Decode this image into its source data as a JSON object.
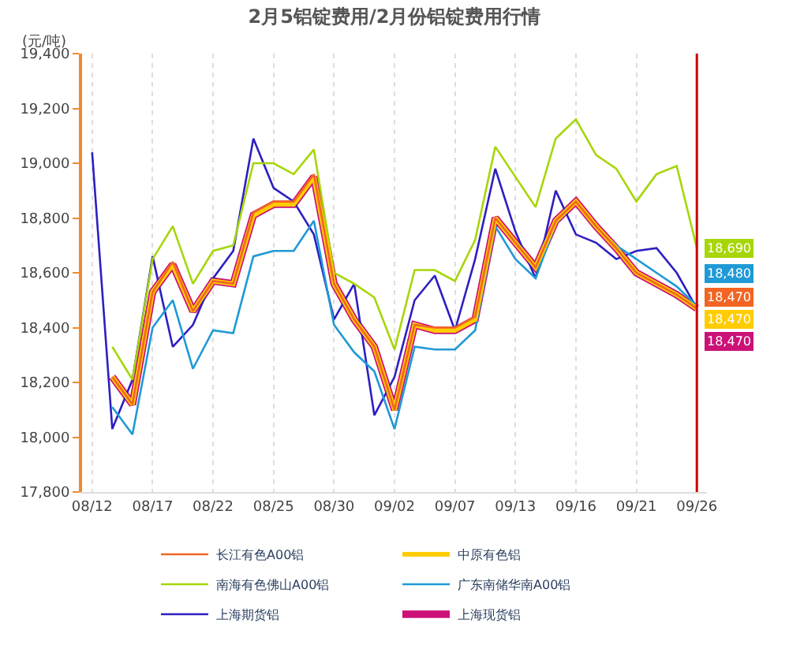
{
  "chart_data": {
    "type": "line",
    "title": "2月5铝锭费用/2月份铝锭费用行情",
    "ylabel": "(元/吨)",
    "categories": [
      "08/12",
      null,
      null,
      "08/17",
      null,
      null,
      "08/22",
      null,
      null,
      "08/25",
      null,
      null,
      "08/30",
      null,
      null,
      "09/02",
      null,
      null,
      "09/07",
      null,
      null,
      "09/13",
      null,
      null,
      "09/16",
      null,
      null,
      "09/21",
      null,
      null,
      "09/26"
    ],
    "series": [
      {
        "name": "长江有色A00铝",
        "color": "#f26522",
        "values": [
          null,
          18220,
          18120,
          18530,
          18640,
          18460,
          18570,
          18560,
          18820,
          18860,
          18860,
          18960,
          18560,
          18430,
          18330,
          18100,
          18410,
          18400,
          18400,
          18440,
          18800,
          18710,
          18620,
          18790,
          18860,
          18770,
          18690,
          18600,
          18560,
          18520,
          18470
        ],
        "value_labels": [
          null,
          null,
          null,
          null,
          null,
          null,
          null,
          null,
          null,
          null,
          null,
          null,
          null,
          null,
          null,
          null,
          null,
          null,
          null,
          null,
          null,
          null,
          null,
          null,
          null,
          null,
          null,
          null,
          null,
          null,
          "18,470"
        ]
      },
      {
        "name": "中原有色铝",
        "color": "#ffcc00",
        "values": [
          null,
          18220,
          18120,
          18530,
          18630,
          18460,
          18570,
          18560,
          18810,
          18850,
          18850,
          18950,
          18560,
          18430,
          18330,
          18100,
          18410,
          18390,
          18390,
          18430,
          18800,
          18710,
          18620,
          18790,
          18860,
          18770,
          18690,
          18600,
          18560,
          18520,
          18470
        ],
        "value_labels": [
          null,
          null,
          null,
          null,
          null,
          null,
          null,
          null,
          null,
          null,
          null,
          null,
          null,
          null,
          null,
          null,
          null,
          null,
          null,
          null,
          null,
          null,
          null,
          null,
          null,
          null,
          null,
          null,
          null,
          null,
          "18,470"
        ]
      },
      {
        "name": "南海有色佛山A00铝",
        "color": "#a6d608",
        "values": [
          null,
          18330,
          18210,
          18650,
          18770,
          18560,
          18680,
          18700,
          19000,
          19000,
          18960,
          19050,
          18600,
          18560,
          18510,
          18320,
          18610,
          18610,
          18570,
          18720,
          19060,
          18950,
          18840,
          19090,
          19160,
          19030,
          18980,
          18860,
          18960,
          18990,
          18690
        ],
        "value_labels": [
          null,
          null,
          null,
          null,
          null,
          null,
          null,
          null,
          null,
          null,
          null,
          null,
          null,
          null,
          null,
          null,
          null,
          null,
          null,
          null,
          null,
          null,
          null,
          null,
          null,
          null,
          null,
          null,
          null,
          null,
          "18,690"
        ]
      },
      {
        "name": "广东南储华南A00铝",
        "color": "#1f9ad6",
        "values": [
          null,
          18110,
          18010,
          18400,
          18500,
          18250,
          18390,
          18380,
          18660,
          18680,
          18680,
          18790,
          18410,
          18310,
          18240,
          18030,
          18330,
          18320,
          18320,
          18390,
          18770,
          18650,
          18580,
          18780,
          18860,
          18770,
          18700,
          18650,
          18600,
          18550,
          18480
        ],
        "value_labels": [
          null,
          null,
          null,
          null,
          null,
          null,
          null,
          null,
          null,
          null,
          null,
          null,
          null,
          null,
          null,
          null,
          null,
          null,
          null,
          null,
          null,
          null,
          null,
          null,
          null,
          null,
          null,
          null,
          null,
          null,
          "18,480"
        ]
      },
      {
        "name": "上海期货铝",
        "color": "#2d1fc0",
        "values": [
          19040,
          18030,
          18210,
          18660,
          18330,
          18410,
          18580,
          18680,
          19090,
          18910,
          18860,
          18740,
          18430,
          18560,
          18080,
          18220,
          18500,
          18590,
          18390,
          18650,
          18980,
          18750,
          18580,
          18900,
          18740,
          18710,
          18650,
          18680,
          18690,
          18600,
          18470
        ]
      },
      {
        "name": "上海现货铝",
        "color": "#cc1177",
        "values": [
          null,
          18220,
          18120,
          18530,
          18630,
          18460,
          18570,
          18560,
          18810,
          18850,
          18850,
          18950,
          18560,
          18430,
          18330,
          18100,
          18410,
          18390,
          18390,
          18430,
          18800,
          18710,
          18620,
          18790,
          18860,
          18770,
          18690,
          18600,
          18560,
          18520,
          18470
        ],
        "value_labels": [
          null,
          null,
          null,
          null,
          null,
          null,
          null,
          null,
          null,
          null,
          null,
          null,
          null,
          null,
          null,
          null,
          null,
          null,
          null,
          null,
          null,
          null,
          null,
          null,
          null,
          null,
          null,
          null,
          null,
          null,
          "18,470"
        ]
      }
    ],
    "ylim": [
      17800,
      19400
    ],
    "yticks": [
      {
        "value": 17800,
        "label": "17,800"
      },
      {
        "value": 18000,
        "label": "18,000"
      },
      {
        "value": 18200,
        "label": "18,200"
      },
      {
        "value": 18400,
        "label": "18,400"
      },
      {
        "value": 18600,
        "label": "18,600"
      },
      {
        "value": 18800,
        "label": "18,800"
      },
      {
        "value": 19000,
        "label": "19,000"
      },
      {
        "value": 19200,
        "label": "19,200"
      },
      {
        "value": 19400,
        "label": "19,400"
      }
    ],
    "ref_lines": [
      {
        "axis": "x",
        "value": "09/26",
        "color": "#cc0000"
      }
    ],
    "grid": "x",
    "legend": "bottom",
    "marker": "none",
    "line_style": "solid"
  }
}
